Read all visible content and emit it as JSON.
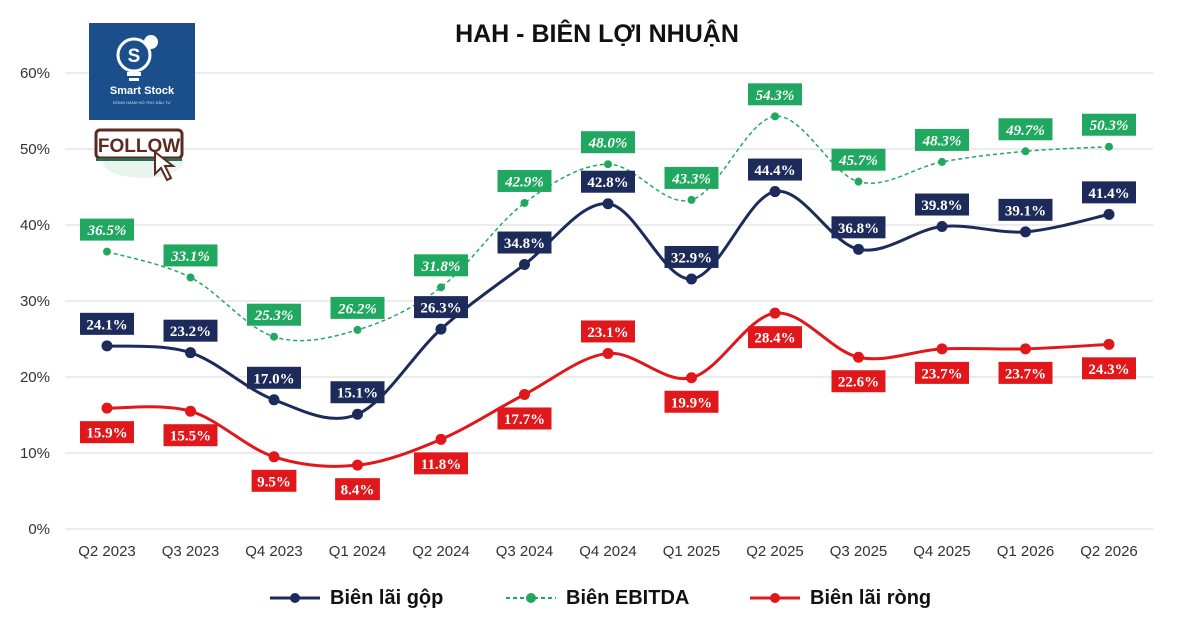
{
  "chart_data": {
    "type": "line",
    "title": "HAH - BIÊN LỢI NHUẬN",
    "categories": [
      "Q2 2023",
      "Q3 2023",
      "Q4 2023",
      "Q1 2024",
      "Q2 2024",
      "Q3 2024",
      "Q4 2024",
      "Q1 2025",
      "Q2 2025",
      "Q3 2025",
      "Q4 2025",
      "Q1 2026",
      "Q2 2026"
    ],
    "ylim": [
      0,
      60
    ],
    "yticks": [
      "0%",
      "10%",
      "20%",
      "30%",
      "40%",
      "50%",
      "60%"
    ],
    "grid": true,
    "legend_position": "bottom",
    "series": [
      {
        "name": "Biên lãi gộp",
        "color": "#1c2b5a",
        "style": "solid",
        "values": [
          24.1,
          23.2,
          17.0,
          15.1,
          26.3,
          34.8,
          42.8,
          32.9,
          44.4,
          36.8,
          39.8,
          39.1,
          41.4
        ],
        "labels": [
          "24.1%",
          "23.2%",
          "17.0%",
          "15.1%",
          "26.3%",
          "34.8%",
          "42.8%",
          "32.9%",
          "44.4%",
          "36.8%",
          "39.8%",
          "39.1%",
          "41.4%"
        ]
      },
      {
        "name": "Biên EBITDA",
        "color": "#21a860",
        "style": "dashed",
        "values": [
          36.5,
          33.1,
          25.3,
          26.2,
          31.8,
          42.9,
          48.0,
          43.3,
          54.3,
          45.7,
          48.3,
          49.7,
          50.3
        ],
        "labels": [
          "36.5%",
          "33.1%",
          "25.3%",
          "26.2%",
          "31.8%",
          "42.9%",
          "48.0%",
          "43.3%",
          "54.3%",
          "45.7%",
          "48.3%",
          "49.7%",
          "50.3%"
        ]
      },
      {
        "name": "Biên lãi ròng",
        "color": "#e0181b",
        "style": "solid",
        "values": [
          15.9,
          15.5,
          9.5,
          8.4,
          11.8,
          17.7,
          23.1,
          19.9,
          28.4,
          22.6,
          23.7,
          23.7,
          24.3
        ],
        "labels": [
          "15.9%",
          "15.5%",
          "9.5%",
          "8.4%",
          "11.8%",
          "17.7%",
          "23.1%",
          "19.9%",
          "28.4%",
          "22.6%",
          "23.7%",
          "23.7%",
          "24.3%"
        ]
      }
    ]
  },
  "logo": {
    "name": "Smart Stock",
    "tagline": "ĐỒNG HÀNH HỖ TRỢ ĐẦU TƯ"
  },
  "follow_label": "FOLLOW",
  "colors": {
    "logo_bg": "#1a4f8b",
    "grid": "#d9d9d9"
  }
}
